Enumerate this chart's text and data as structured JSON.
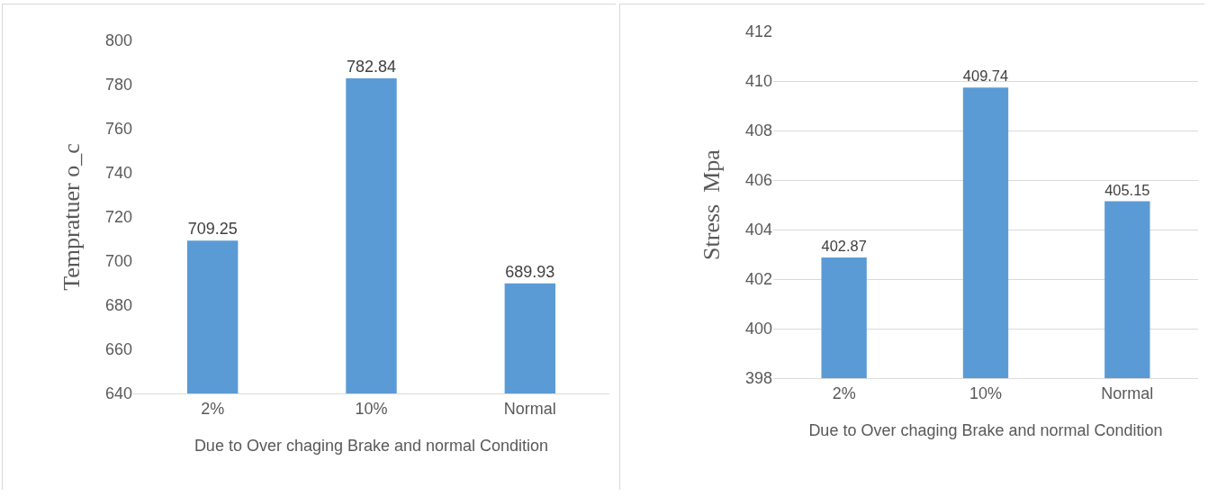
{
  "chart_data": [
    {
      "type": "bar",
      "categories": [
        "2%",
        "10%",
        "Normal"
      ],
      "values": [
        709.25,
        782.84,
        689.93
      ],
      "color": "#5b9bd5",
      "ylim": [
        640,
        800
      ],
      "yticks": [
        640,
        660,
        680,
        700,
        720,
        740,
        760,
        780,
        800
      ],
      "ylabel": "Tempratuer o_c",
      "xlabel": "Due to Over chaging Brake and normal Condition",
      "data_labels": true,
      "grid": false,
      "legend": false
    },
    {
      "type": "bar",
      "categories": [
        "2%",
        "10%",
        "Normal"
      ],
      "values": [
        402.87,
        409.74,
        405.15
      ],
      "color": "#5b9bd5",
      "ylim": [
        398,
        412
      ],
      "yticks": [
        398,
        400,
        402,
        404,
        406,
        408,
        410,
        412
      ],
      "ylabel": "Stress  Mpa",
      "xlabel": "Due to Over chaging Brake and normal Condition",
      "data_labels": true,
      "grid": "y",
      "legend": false
    }
  ]
}
